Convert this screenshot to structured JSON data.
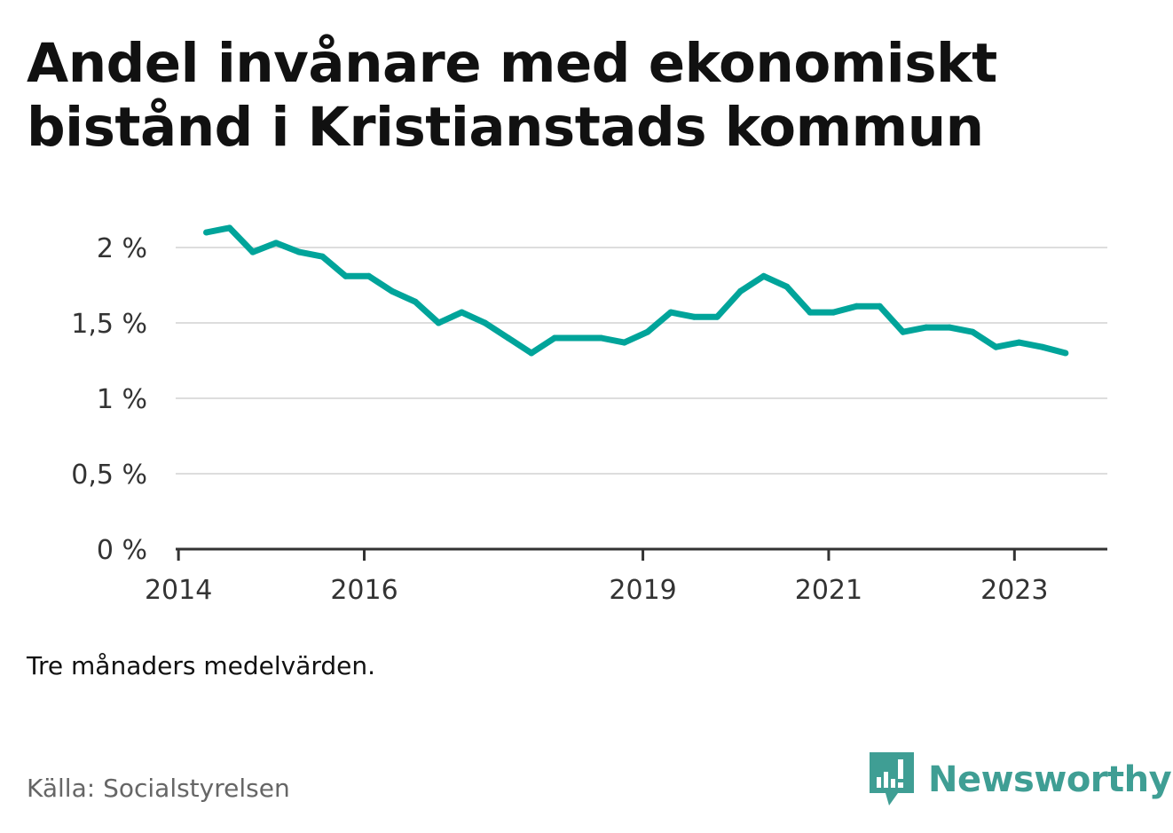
{
  "title": "Andel invånare med ekonomiskt\nbistånd i Kristianstads kommun",
  "note": "Tre månaders medelvärden.",
  "source": "Källa: Socialstyrelsen",
  "brand": "Newsworthy",
  "colors": {
    "line": "#00a49a",
    "grid": "#dddddd",
    "axis": "#333333",
    "brand": "#3f9e94"
  },
  "chart_data": {
    "type": "line",
    "title": "Andel invånare med ekonomiskt bistånd i Kristianstads kommun",
    "xlabel": "",
    "ylabel": "",
    "ylim": [
      0,
      2.3
    ],
    "grid": true,
    "yticks": [
      {
        "value": 0,
        "label": "0 %"
      },
      {
        "value": 0.5,
        "label": "0,5 %"
      },
      {
        "value": 1,
        "label": "1 %"
      },
      {
        "value": 1.5,
        "label": "1,5 %"
      },
      {
        "value": 2,
        "label": "2 %"
      }
    ],
    "xticks": [
      {
        "value": 2014,
        "label": "2014"
      },
      {
        "value": 2016,
        "label": "2016"
      },
      {
        "value": 2019,
        "label": "2019"
      },
      {
        "value": 2021,
        "label": "2021"
      },
      {
        "value": 2023,
        "label": "2023"
      }
    ],
    "x": [
      2014.3,
      2014.55,
      2014.8,
      2015.05,
      2015.3,
      2015.55,
      2015.8,
      2016.05,
      2016.3,
      2016.55,
      2016.8,
      2017.05,
      2017.3,
      2017.55,
      2017.8,
      2018.05,
      2018.3,
      2018.55,
      2018.8,
      2019.05,
      2019.3,
      2019.55,
      2019.8,
      2020.05,
      2020.3,
      2020.55,
      2020.8,
      2021.05,
      2021.3,
      2021.55,
      2021.8,
      2022.05,
      2022.3,
      2022.55,
      2022.8,
      2023.05,
      2023.3,
      2023.55
    ],
    "y": [
      2.1,
      2.13,
      1.97,
      2.03,
      1.97,
      1.94,
      1.81,
      1.81,
      1.71,
      1.64,
      1.5,
      1.57,
      1.5,
      1.4,
      1.3,
      1.4,
      1.4,
      1.4,
      1.37,
      1.44,
      1.57,
      1.54,
      1.54,
      1.71,
      1.81,
      1.74,
      1.57,
      1.57,
      1.61,
      1.61,
      1.44,
      1.47,
      1.47,
      1.44,
      1.34,
      1.37,
      1.34,
      1.3
    ]
  }
}
